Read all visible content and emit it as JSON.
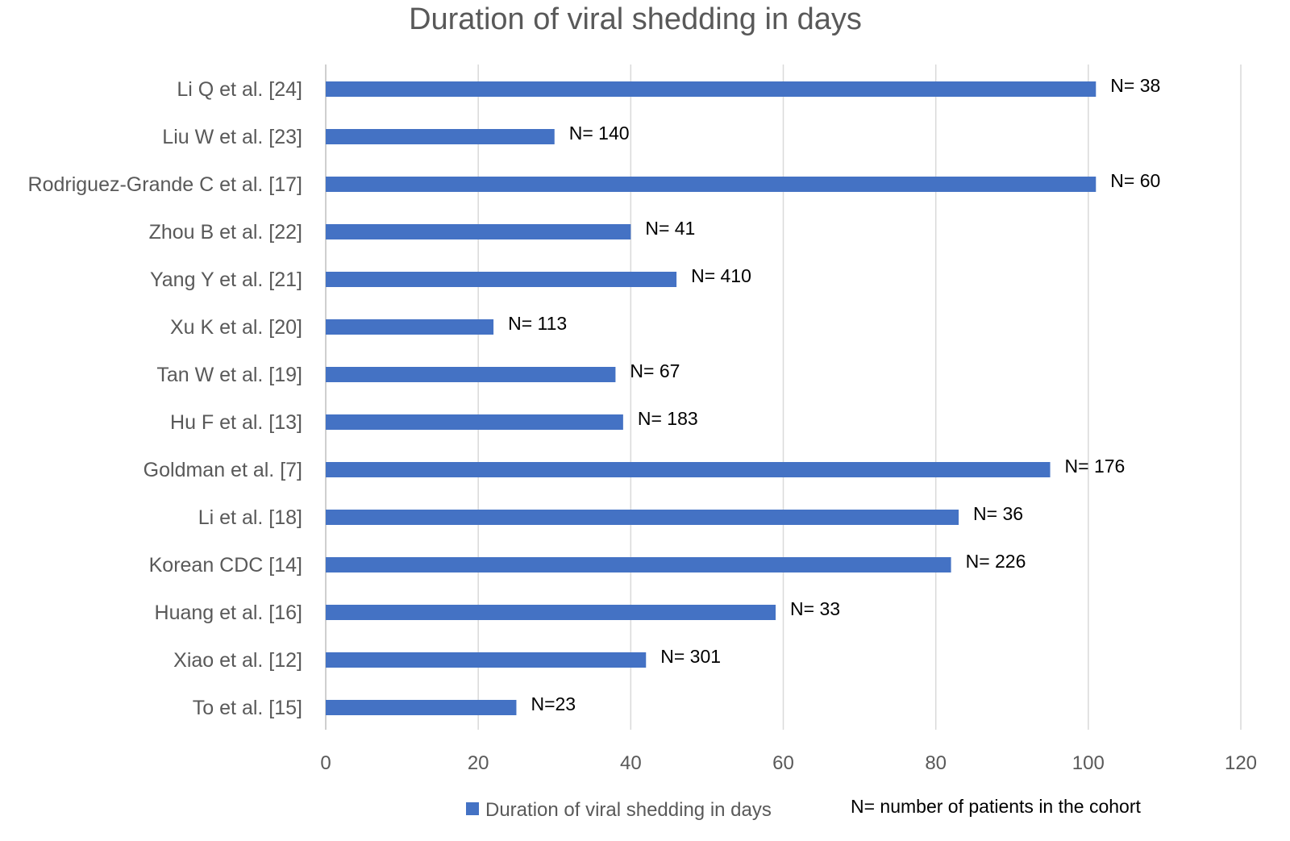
{
  "chart_data": {
    "type": "bar",
    "orientation": "horizontal",
    "title": "Duration of viral shedding in days",
    "xlabel": "",
    "ylabel": "",
    "xlim": [
      0,
      120
    ],
    "xticks": [
      0,
      20,
      40,
      60,
      80,
      100,
      120
    ],
    "grid": true,
    "categories": [
      "Li Q et al. [24]",
      "Liu W et al. [23]",
      "Rodriguez-Grande C et al. [17]",
      "Zhou B et al. [22]",
      "Yang Y et al. [21]",
      "Xu K et al. [20]",
      "Tan W et al. [19]",
      "Hu F et al. [13]",
      "Goldman et al. [7]",
      "Li et al. [18]",
      "Korean CDC [14]",
      "Huang et al. [16]",
      "Xiao et al. [12]",
      "To et al. [15]"
    ],
    "series": [
      {
        "name": "Duration of viral shedding in days",
        "color": "#4472C4",
        "values": [
          101,
          30,
          101,
          40,
          46,
          22,
          38,
          39,
          95,
          83,
          82,
          59,
          42,
          25
        ]
      }
    ],
    "annotations": [
      "N= 38",
      "N= 140",
      "N= 60",
      "N= 41",
      "N= 410",
      "N= 113",
      "N= 67",
      "N= 183",
      "N= 176",
      "N= 36",
      "N= 226",
      "N= 33",
      "N= 301",
      "N=23"
    ],
    "legend": {
      "position": "bottom",
      "note": "N= number of patients in the cohort"
    }
  }
}
